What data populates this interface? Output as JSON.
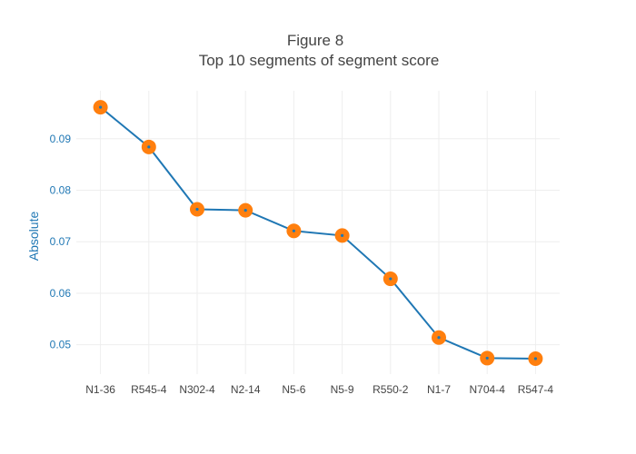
{
  "chart_data": {
    "type": "line",
    "title": "Figure 8",
    "subtitle": "Top 10 segments of segment score",
    "xlabel": "",
    "ylabel": "Absolute",
    "categories": [
      "N1-36",
      "R545-4",
      "N302-4",
      "N2-14",
      "N5-6",
      "N5-9",
      "R550-2",
      "N1-7",
      "N704-4",
      "R547-4"
    ],
    "series": [
      {
        "values": [
          0.0961,
          0.0884,
          0.0763,
          0.0761,
          0.0721,
          0.0712,
          0.0628,
          0.0514,
          0.0474,
          0.0473
        ]
      }
    ],
    "yticks": [
      0.05,
      0.06,
      0.07,
      0.08,
      0.09
    ],
    "ytick_labels": [
      "0.05",
      "0.06",
      "0.07",
      "0.08",
      "0.09"
    ],
    "ylim": [
      0.0443,
      0.0993
    ],
    "grid": true,
    "legend": "none",
    "colors": {
      "line": "#1f77b4",
      "marker": "#ff7f0e",
      "marker_center": "#1f77b4",
      "grid": "#eeeeee",
      "title": "#444444",
      "axis_text": "#1f77b4"
    }
  }
}
